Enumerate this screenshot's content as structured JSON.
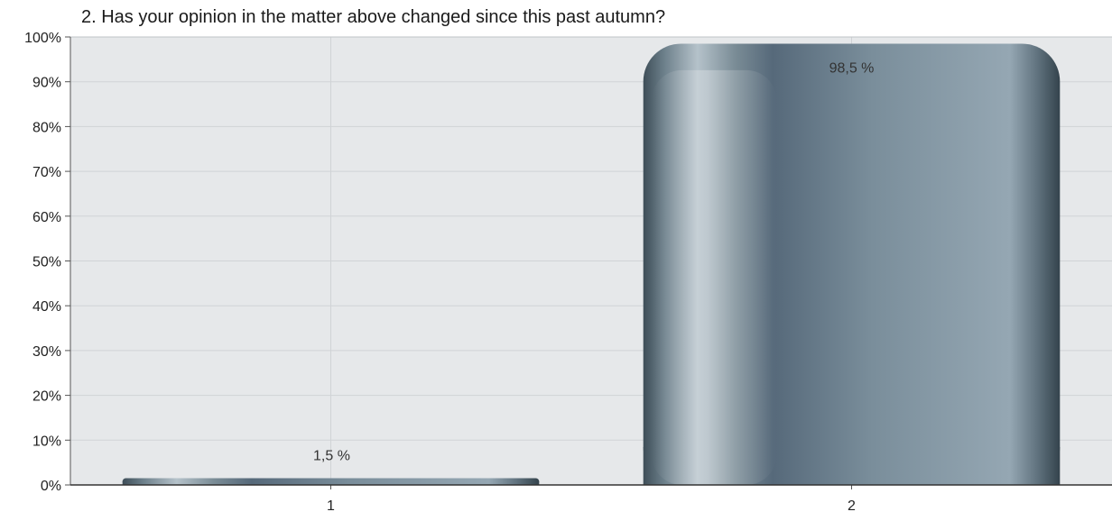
{
  "chart_data": {
    "type": "bar",
    "title": "2. Has your opinion in the matter above changed since this past autumn?",
    "xlabel": "",
    "ylabel": "",
    "categories": [
      "1",
      "2"
    ],
    "values": [
      1.5,
      98.5
    ],
    "data_labels": [
      "1,5 %",
      "98,5 %"
    ],
    "yticks": [
      "0%",
      "10%",
      "20%",
      "30%",
      "40%",
      "50%",
      "60%",
      "70%",
      "80%",
      "90%",
      "100%"
    ],
    "ylim": [
      0,
      100
    ],
    "grid": true,
    "legend": "none",
    "colors": {
      "plot_bg": "#e6e8ea",
      "grid": "#d0d3d6",
      "bar_dark": "#3e4e58",
      "bar_mid": "#5e717c",
      "bar_light": "#9aabb6",
      "axis": "#555555"
    }
  }
}
